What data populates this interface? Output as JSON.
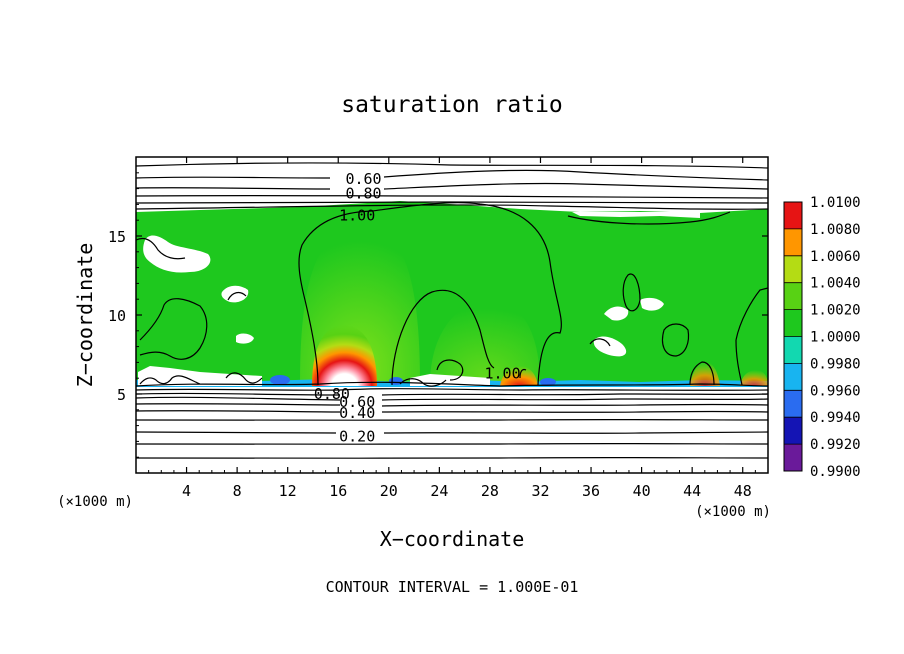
{
  "chart_data": {
    "type": "heatmap",
    "title": "saturation ratio",
    "xlabel": "X−coordinate",
    "ylabel": "Z−coordinate",
    "x_unit_left": "(×1000 m)",
    "x_unit_right": "(×1000 m)",
    "xlim": [
      0,
      50
    ],
    "ylim": [
      0,
      20
    ],
    "x_ticks": [
      4,
      8,
      12,
      16,
      20,
      24,
      28,
      32,
      36,
      40,
      44,
      48
    ],
    "y_ticks": [
      5,
      10,
      15
    ],
    "grid": false,
    "colorbar": {
      "placement": "right",
      "ticks": [
        "0.9900",
        "0.9920",
        "0.9940",
        "0.9960",
        "0.9980",
        "1.0000",
        "1.0020",
        "1.0040",
        "1.0060",
        "1.0080",
        "1.0100"
      ],
      "colors": [
        "#6a1a9a",
        "#1414b4",
        "#2a6cf0",
        "#18b4f0",
        "#12d8b0",
        "#1ec81e",
        "#58d214",
        "#b4dc14",
        "#ff9600",
        "#e61414",
        "#ff8ca0"
      ]
    },
    "contour_labels": [
      {
        "text": "0.60",
        "x": 18,
        "y": 18.6
      },
      {
        "text": "0.80",
        "x": 18,
        "y": 17.7
      },
      {
        "text": "1.00",
        "x": 17.5,
        "y": 16.3
      },
      {
        "text": "1.00",
        "x": 29,
        "y": 6.3
      },
      {
        "text": "0.80",
        "x": 15.5,
        "y": 5.0
      },
      {
        "text": "0.60",
        "x": 17.5,
        "y": 4.5
      },
      {
        "text": "0.40",
        "x": 17.5,
        "y": 3.8
      },
      {
        "text": "0.20",
        "x": 17.5,
        "y": 2.3
      }
    ],
    "annotation": "CONTOUR INTERVAL = 1.000E-01"
  }
}
